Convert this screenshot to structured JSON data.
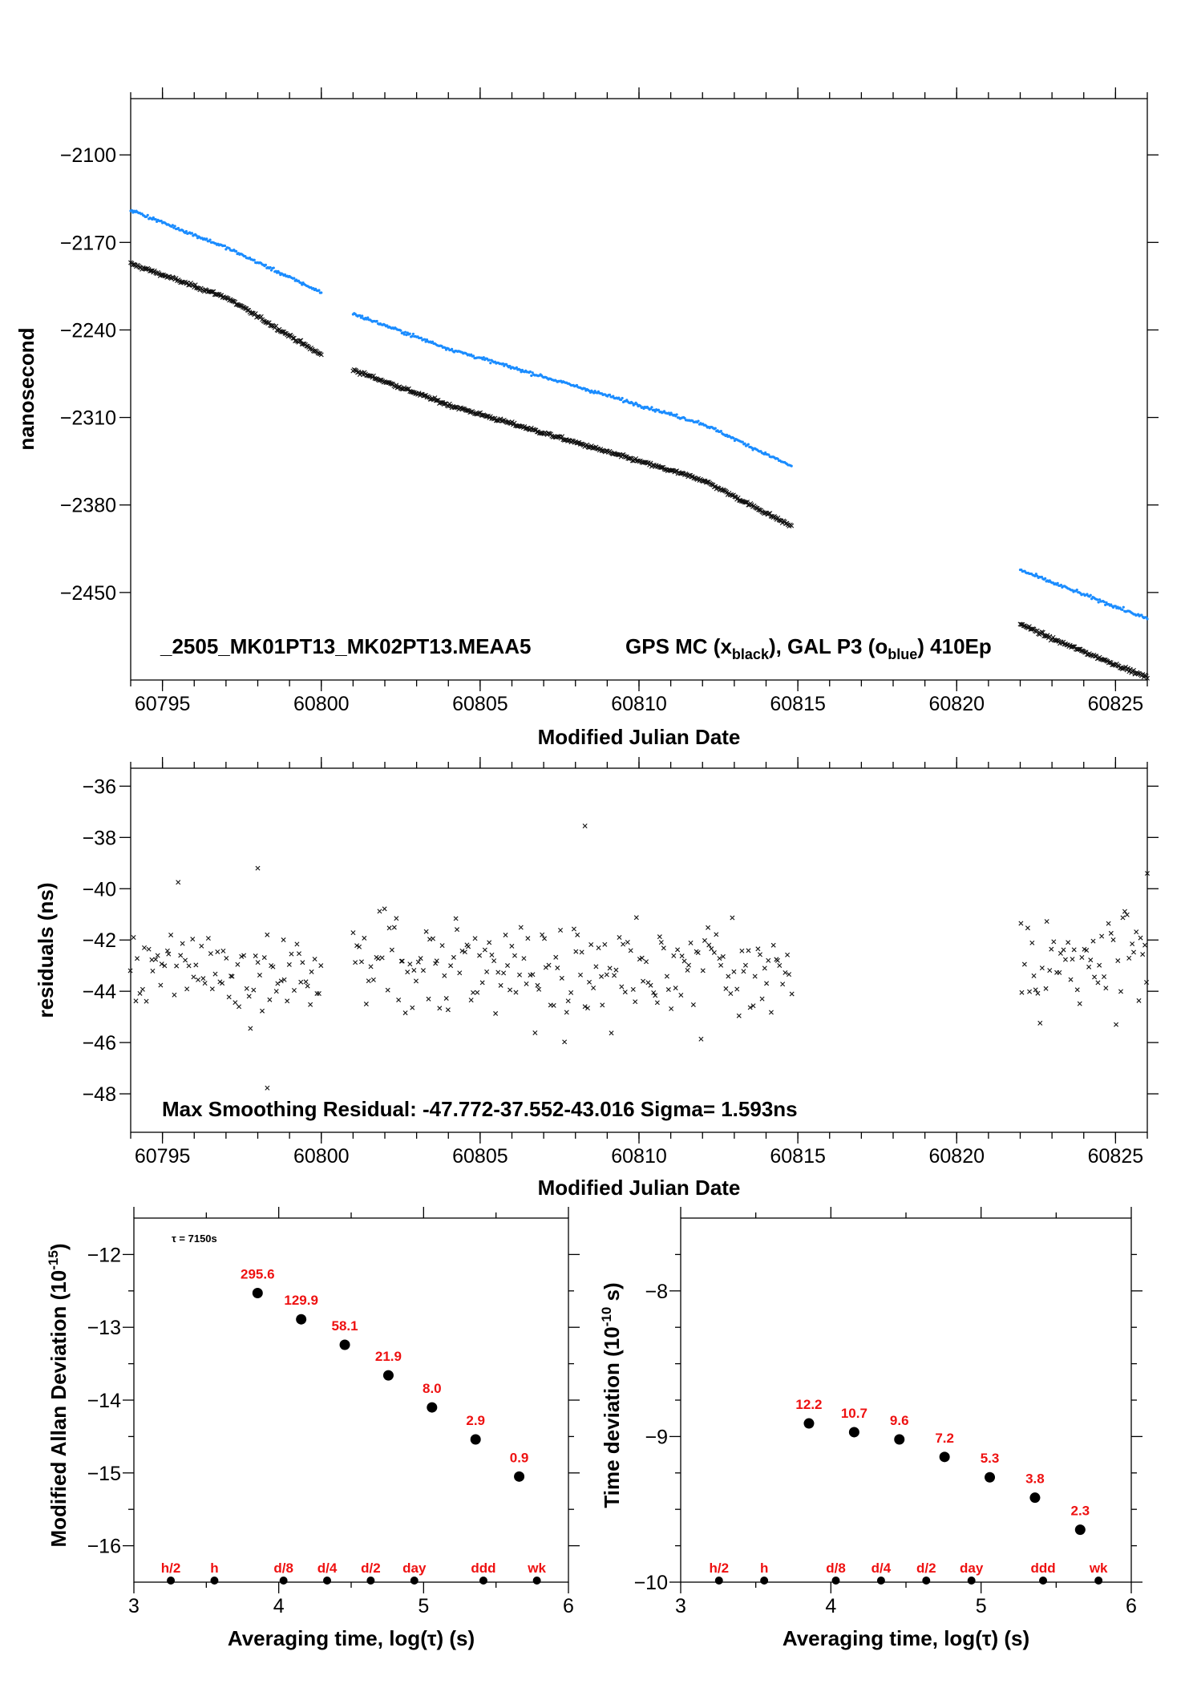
{
  "colors": {
    "black_series": "#111111",
    "blue_series": "#1a8cff",
    "red_labels": "#ee1111"
  },
  "panel1": {
    "xlabel": "Modified Julian Date",
    "ylabel": "nanosecond",
    "annotation_id": "_2505_MK01PT13_MK02PT13.MEAA5",
    "annotation_gps": "GPS MC (x",
    "annotation_gps_sub": "black",
    "annotation_gal": "),  GAL P3 (o",
    "annotation_gal_sub": "blue",
    "annotation_ep": ")  410Ep",
    "xticks": [
      "60795",
      "60800",
      "60805",
      "60810",
      "60815",
      "60820",
      "60825"
    ],
    "yticks": [
      "−2100",
      "−2170",
      "−2240",
      "−2310",
      "−2380",
      "−2450"
    ]
  },
  "panel2": {
    "xlabel": "Modified Julian Date",
    "ylabel": "residuals (ns)",
    "annotation": "Max Smoothing Residual: -47.772-37.552-43.016  Sigma= 1.593ns",
    "xticks": [
      "60795",
      "60800",
      "60805",
      "60810",
      "60815",
      "60820",
      "60825"
    ],
    "yticks": [
      "−36",
      "−38",
      "−40",
      "−42",
      "−44",
      "−46",
      "−48"
    ]
  },
  "panel3": {
    "xlabel": "Averaging time, log(τ) (s)",
    "ylabel_main": "Modified Allan Deviation (10",
    "ylabel_sup": "-15",
    "ylabel_end": ")",
    "tau_note": "τ = 7150s",
    "xticks": [
      "3",
      "4",
      "5",
      "6"
    ],
    "yticks": [
      "−12",
      "−13",
      "−14",
      "−15",
      "−16"
    ]
  },
  "panel4": {
    "xlabel": "Averaging time, log(τ) (s)",
    "ylabel_main": "Time deviation (10",
    "ylabel_sup": "-10",
    "ylabel_end": " s)",
    "xticks": [
      "3",
      "4",
      "5",
      "6"
    ],
    "yticks": [
      "−8",
      "−9",
      "−10"
    ]
  },
  "chart_data": [
    {
      "type": "scatter",
      "xlabel": "Modified Julian Date",
      "ylabel": "nanosecond",
      "xlim": [
        60794,
        60826
      ],
      "ylim": [
        -2520,
        -2055
      ],
      "series": [
        {
          "name": "GPS MC",
          "segments": [
            {
              "x": [
                60794,
                60797,
                60800
              ],
              "y": [
                -2187,
                -2214,
                -2260
              ]
            },
            {
              "x": [
                60801,
                60804,
                60808,
                60812,
                60814.8
              ],
              "y": [
                -2272,
                -2300,
                -2330,
                -2360,
                -2397
              ]
            },
            {
              "x": [
                60822,
                60823,
                60826
              ],
              "y": [
                -2475,
                -2487,
                -2518
              ]
            }
          ]
        },
        {
          "name": "GAL P3",
          "segments": [
            {
              "x": [
                60794,
                60797,
                60800
              ],
              "y": [
                -2144,
                -2174,
                -2210
              ]
            },
            {
              "x": [
                60801,
                60804,
                60808,
                60812,
                60814.8
              ],
              "y": [
                -2227,
                -2255,
                -2285,
                -2315,
                -2349
              ]
            },
            {
              "x": [
                60822,
                60823,
                60826
              ],
              "y": [
                -2432,
                -2442,
                -2471
              ]
            }
          ]
        }
      ]
    },
    {
      "type": "scatter",
      "xlabel": "Modified Julian Date",
      "ylabel": "residuals (ns)",
      "xlim": [
        60794,
        60826
      ],
      "ylim": [
        -49.5,
        -35.3
      ],
      "ranges": [
        [
          60794,
          60800
        ],
        [
          60801,
          60814.8
        ],
        [
          60822,
          60826
        ]
      ],
      "mean": -43.0,
      "sigma": 1.593,
      "min": -47.772,
      "max": -37.552,
      "extremes": [
        {
          "x": 60798.0,
          "y": -39.2
        },
        {
          "x": 60798.3,
          "y": -47.772
        },
        {
          "x": 60808.3,
          "y": -37.552
        },
        {
          "x": 60826.0,
          "y": -39.4
        }
      ]
    },
    {
      "type": "scatter",
      "xlabel": "Averaging time, log(τ) (s)",
      "ylabel": "Modified Allan Deviation (10^-15)",
      "xlim": [
        3,
        6
      ],
      "ylim": [
        -16.5,
        -11.5
      ],
      "x": [
        3.854,
        4.155,
        4.456,
        4.757,
        5.058,
        5.359,
        5.66
      ],
      "y": [
        -12.53,
        -12.89,
        -13.24,
        -13.66,
        -14.1,
        -14.54,
        -15.05
      ],
      "labels": [
        "295.6",
        "129.9",
        "58.1",
        "21.9",
        "8.0",
        "2.9",
        "0.9"
      ],
      "markers": [
        {
          "label": "h/2",
          "x": 3.255
        },
        {
          "label": "h",
          "x": 3.556
        },
        {
          "label": "d/8",
          "x": 4.033
        },
        {
          "label": "d/4",
          "x": 4.334
        },
        {
          "label": "d/2",
          "x": 4.635
        },
        {
          "label": "day",
          "x": 4.936
        },
        {
          "label": "ddd",
          "x": 5.413
        },
        {
          "label": "wk",
          "x": 5.782
        }
      ]
    },
    {
      "type": "scatter",
      "xlabel": "Averaging time, log(τ) (s)",
      "ylabel": "Time deviation (10^-10 s)",
      "xlim": [
        3,
        6
      ],
      "ylim": [
        -10,
        -7.5
      ],
      "x": [
        3.854,
        4.155,
        4.456,
        4.757,
        5.058,
        5.359,
        5.66
      ],
      "y": [
        -8.91,
        -8.97,
        -9.02,
        -9.14,
        -9.28,
        -9.42,
        -9.64
      ],
      "labels": [
        "12.2",
        "10.7",
        "9.6",
        "7.2",
        "5.3",
        "3.8",
        "2.3"
      ],
      "markers": [
        {
          "label": "h/2",
          "x": 3.255
        },
        {
          "label": "h",
          "x": 3.556
        },
        {
          "label": "d/8",
          "x": 4.033
        },
        {
          "label": "d/4",
          "x": 4.334
        },
        {
          "label": "d/2",
          "x": 4.635
        },
        {
          "label": "day",
          "x": 4.936
        },
        {
          "label": "ddd",
          "x": 5.413
        },
        {
          "label": "wk",
          "x": 5.782
        }
      ]
    }
  ]
}
